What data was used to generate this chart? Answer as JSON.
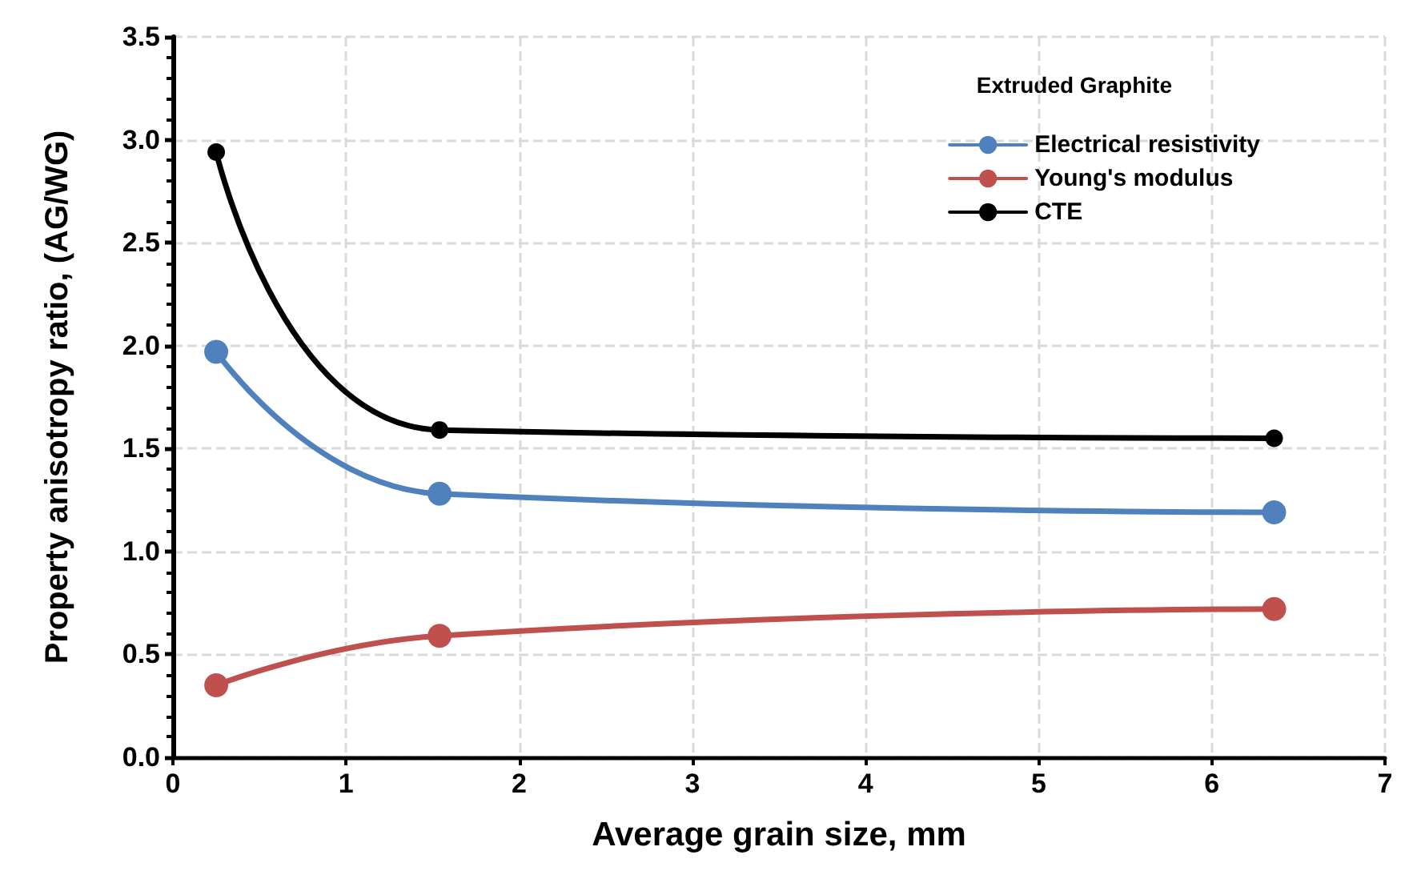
{
  "chart_data": {
    "type": "line",
    "xlabel": "Average grain size, mm",
    "ylabel": "Property anisotropy ratio, (AG/WG)",
    "legend_title": "Extruded Graphite",
    "x": [
      0.25,
      1.54,
      6.36
    ],
    "series": [
      {
        "name": "Electrical resistivity",
        "color": "#4f81bd",
        "values": [
          1.97,
          1.28,
          1.19
        ]
      },
      {
        "name": "Young's modulus",
        "color": "#c0504d",
        "values": [
          0.35,
          0.59,
          0.72
        ]
      },
      {
        "name": "CTE",
        "color": "#000000",
        "values": [
          2.94,
          1.59,
          1.55
        ]
      }
    ],
    "xlim": [
      0,
      7
    ],
    "xticks": [
      0,
      1,
      2,
      3,
      4,
      5,
      6,
      7
    ],
    "ylim": [
      0,
      3.5
    ],
    "yticks": [
      {
        "value": 0,
        "label": "0.0"
      },
      0.5,
      {
        "value": 1,
        "label": "1.0"
      },
      1.5,
      {
        "value": 2,
        "label": "2.0"
      },
      2.5,
      {
        "value": 3,
        "label": "3.0"
      },
      3.5
    ],
    "grid": true,
    "legend": "top right",
    "marker": "circle",
    "line_style": "solid"
  }
}
